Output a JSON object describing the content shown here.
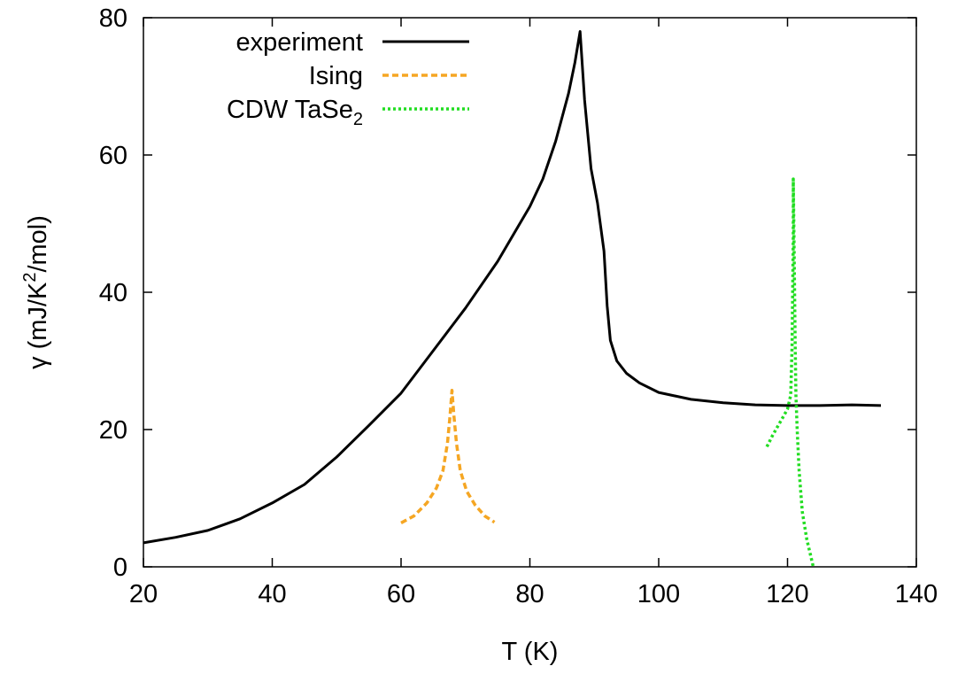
{
  "chart_data": {
    "type": "line",
    "xlabel": "T (K)",
    "ylabel_parts": [
      "γ (mJ/K",
      "2",
      "/mol)"
    ],
    "xlim": [
      20,
      140
    ],
    "ylim": [
      0,
      80
    ],
    "xticks": [
      20,
      40,
      60,
      80,
      100,
      120,
      140
    ],
    "yticks": [
      0,
      20,
      40,
      60,
      80
    ],
    "grid": false,
    "legend_position": "top-left",
    "series": [
      {
        "name": "experiment",
        "name_sub": "",
        "style": "solid",
        "color": "#000000",
        "points": [
          [
            20,
            3.5
          ],
          [
            25,
            4.3
          ],
          [
            30,
            5.3
          ],
          [
            35,
            7
          ],
          [
            40,
            9.3
          ],
          [
            45,
            12
          ],
          [
            50,
            16
          ],
          [
            55,
            20.6
          ],
          [
            60,
            25.3
          ],
          [
            65,
            31.5
          ],
          [
            70,
            37.7
          ],
          [
            75,
            44.5
          ],
          [
            80,
            52.5
          ],
          [
            82,
            56.5
          ],
          [
            84,
            62
          ],
          [
            86,
            69
          ],
          [
            87,
            73.5
          ],
          [
            87.8,
            78
          ],
          [
            88.5,
            68
          ],
          [
            89.5,
            58
          ],
          [
            90.5,
            53
          ],
          [
            91.5,
            46
          ],
          [
            92,
            38
          ],
          [
            92.5,
            33
          ],
          [
            93.5,
            30
          ],
          [
            95,
            28.2
          ],
          [
            97,
            26.8
          ],
          [
            100,
            25.4
          ],
          [
            105,
            24.4
          ],
          [
            110,
            23.9
          ],
          [
            115,
            23.6
          ],
          [
            120,
            23.5
          ],
          [
            125,
            23.5
          ],
          [
            130,
            23.6
          ],
          [
            134.5,
            23.5
          ]
        ]
      },
      {
        "name": "Ising",
        "name_sub": "",
        "style": "dashed",
        "color": "#f5a623",
        "points": [
          [
            60,
            6.4
          ],
          [
            62,
            7.4
          ],
          [
            64,
            9.3
          ],
          [
            65.5,
            11.5
          ],
          [
            66.5,
            14
          ],
          [
            67.2,
            18
          ],
          [
            67.6,
            22
          ],
          [
            67.9,
            25.7
          ],
          [
            68.2,
            22
          ],
          [
            68.6,
            18
          ],
          [
            69.2,
            14
          ],
          [
            70.2,
            11
          ],
          [
            71.5,
            9
          ],
          [
            73,
            7.4
          ],
          [
            74.5,
            6.5
          ]
        ]
      },
      {
        "name": "CDW TaSe",
        "name_sub": "2",
        "style": "dotted",
        "color": "#22dd22",
        "points": [
          [
            116.8,
            17.5
          ],
          [
            117.6,
            19
          ],
          [
            118.5,
            20.5
          ],
          [
            119.3,
            21.8
          ],
          [
            120,
            23
          ],
          [
            120.5,
            25
          ],
          [
            120.7,
            32
          ],
          [
            120.8,
            40
          ],
          [
            120.9,
            48
          ],
          [
            120.9,
            56.5
          ],
          [
            121,
            48
          ],
          [
            121.1,
            40
          ],
          [
            121.2,
            32
          ],
          [
            121.3,
            25
          ],
          [
            121.5,
            20
          ],
          [
            121.8,
            14
          ],
          [
            122.3,
            8
          ],
          [
            123,
            4
          ],
          [
            124,
            0
          ]
        ]
      }
    ]
  }
}
